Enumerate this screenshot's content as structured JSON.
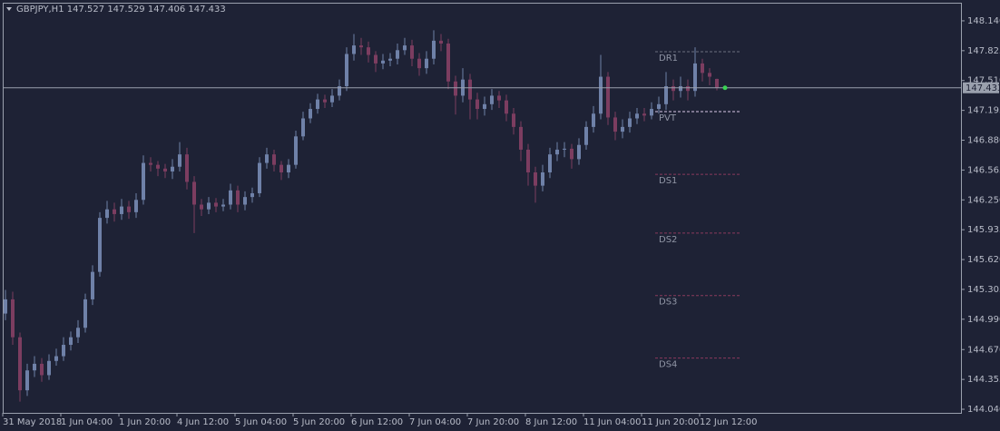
{
  "chart_data": {
    "type": "candlestick",
    "symbol": "GBPJPY,H1",
    "categories": [
      "31 May 2018",
      null,
      null,
      null,
      null,
      null,
      null,
      null,
      "1 Jun 04:00",
      null,
      null,
      null,
      null,
      null,
      null,
      null,
      "1 Jun 20:00",
      null,
      null,
      null,
      null,
      null,
      null,
      null,
      "4 Jun 12:00",
      null,
      null,
      null,
      null,
      null,
      null,
      null,
      "5 Jun 04:00",
      null,
      null,
      null,
      null,
      null,
      null,
      null,
      "5 Jun 20:00",
      null,
      null,
      null,
      null,
      null,
      null,
      null,
      "6 Jun 12:00",
      null,
      null,
      null,
      null,
      null,
      null,
      null,
      "7 Jun 04:00",
      null,
      null,
      null,
      null,
      null,
      null,
      null,
      "7 Jun 20:00",
      null,
      null,
      null,
      null,
      null,
      null,
      null,
      "8 Jun 12:00",
      null,
      null,
      null,
      null,
      null,
      null,
      null,
      "11 Jun 04:00",
      null,
      null,
      null,
      null,
      null,
      null,
      null,
      "11 Jun 20:00",
      null,
      null,
      null,
      null,
      null,
      null,
      null,
      "12 Jun 12:00",
      null,
      null
    ],
    "open": [
      145.05,
      145.2,
      144.8,
      144.24,
      144.45,
      144.52,
      144.4,
      144.55,
      144.6,
      144.72,
      144.8,
      144.9,
      145.2,
      145.49,
      146.06,
      146.15,
      146.1,
      146.18,
      146.12,
      146.25,
      146.64,
      146.62,
      146.58,
      146.55,
      146.6,
      146.73,
      146.44,
      146.2,
      146.15,
      146.22,
      146.18,
      146.2,
      146.35,
      146.2,
      146.28,
      146.32,
      146.64,
      146.73,
      146.62,
      146.54,
      146.62,
      146.92,
      147.11,
      147.21,
      147.31,
      147.28,
      147.35,
      147.45,
      147.79,
      147.88,
      147.86,
      147.78,
      147.69,
      147.72,
      147.74,
      147.83,
      147.88,
      147.74,
      147.64,
      147.74,
      147.93,
      147.9,
      147.5,
      147.35,
      147.52,
      147.31,
      147.21,
      147.26,
      147.35,
      147.3,
      147.16,
      147.02,
      146.78,
      146.54,
      146.4,
      146.54,
      146.73,
      146.78,
      146.79,
      146.68,
      146.83,
      147.02,
      147.16,
      147.55,
      147.12,
      146.97,
      147.02,
      147.11,
      147.16,
      147.14,
      147.21,
      147.26,
      147.45,
      147.4,
      147.45,
      147.4,
      147.69,
      147.59,
      147.527
    ],
    "high": [
      145.3,
      145.28,
      144.85,
      144.52,
      144.6,
      144.58,
      144.62,
      144.68,
      144.8,
      144.86,
      144.98,
      145.26,
      145.56,
      146.12,
      146.24,
      146.22,
      146.26,
      146.24,
      146.32,
      146.72,
      146.7,
      146.66,
      146.63,
      146.68,
      146.86,
      146.8,
      146.5,
      146.26,
      146.28,
      146.27,
      146.26,
      146.42,
      146.4,
      146.34,
      146.38,
      146.7,
      146.8,
      146.78,
      146.66,
      146.68,
      146.98,
      147.18,
      147.27,
      147.37,
      147.36,
      147.42,
      147.52,
      147.86,
      148.0,
      147.96,
      147.92,
      147.82,
      147.79,
      147.8,
      147.9,
      147.96,
      147.94,
      147.8,
      147.82,
      148.04,
      148.0,
      147.95,
      147.56,
      147.64,
      147.58,
      147.38,
      147.34,
      147.42,
      147.4,
      147.36,
      147.22,
      147.08,
      146.84,
      146.6,
      146.62,
      146.8,
      146.86,
      146.86,
      146.84,
      146.9,
      147.08,
      147.24,
      147.78,
      147.6,
      147.18,
      147.1,
      147.18,
      147.22,
      147.22,
      147.28,
      147.34,
      147.6,
      147.52,
      147.55,
      147.52,
      147.86,
      147.74,
      147.64,
      147.529
    ],
    "low": [
      144.98,
      144.72,
      144.12,
      144.18,
      144.38,
      144.33,
      144.35,
      144.5,
      144.55,
      144.66,
      144.74,
      144.85,
      145.14,
      145.44,
      146.0,
      146.02,
      146.04,
      146.05,
      146.06,
      146.2,
      146.55,
      146.5,
      146.48,
      146.47,
      146.55,
      146.36,
      145.9,
      146.08,
      146.1,
      146.12,
      146.13,
      146.15,
      146.12,
      146.14,
      146.22,
      146.28,
      146.58,
      146.55,
      146.46,
      146.48,
      146.58,
      146.88,
      147.06,
      147.16,
      147.22,
      147.23,
      147.3,
      147.4,
      147.72,
      147.78,
      147.7,
      147.6,
      147.63,
      147.66,
      147.68,
      147.78,
      147.66,
      147.56,
      147.58,
      147.68,
      147.82,
      147.42,
      147.15,
      147.28,
      147.1,
      147.1,
      147.14,
      147.2,
      147.22,
      147.08,
      146.94,
      146.66,
      146.4,
      146.22,
      146.34,
      146.48,
      146.66,
      146.7,
      146.58,
      146.62,
      146.78,
      146.96,
      147.1,
      147.04,
      146.88,
      146.9,
      146.96,
      147.05,
      147.08,
      147.1,
      147.16,
      147.2,
      147.3,
      147.33,
      147.3,
      147.34,
      147.5,
      147.46,
      147.406
    ],
    "close": [
      145.2,
      144.8,
      144.24,
      144.45,
      144.52,
      144.4,
      144.55,
      144.6,
      144.72,
      144.8,
      144.9,
      145.2,
      145.49,
      146.06,
      146.15,
      146.1,
      146.18,
      146.12,
      146.25,
      146.64,
      146.62,
      146.58,
      146.55,
      146.6,
      146.73,
      146.44,
      146.2,
      146.15,
      146.22,
      146.18,
      146.2,
      146.35,
      146.2,
      146.28,
      146.32,
      146.64,
      146.73,
      146.62,
      146.54,
      146.62,
      146.92,
      147.11,
      147.21,
      147.31,
      147.28,
      147.35,
      147.45,
      147.79,
      147.88,
      147.86,
      147.78,
      147.69,
      147.72,
      147.74,
      147.83,
      147.88,
      147.74,
      147.64,
      147.74,
      147.93,
      147.9,
      147.5,
      147.35,
      147.52,
      147.31,
      147.21,
      147.26,
      147.35,
      147.3,
      147.16,
      147.02,
      146.78,
      146.54,
      146.4,
      146.54,
      146.73,
      146.78,
      146.79,
      146.68,
      146.83,
      147.02,
      147.16,
      147.55,
      147.12,
      146.97,
      147.02,
      147.11,
      147.16,
      147.14,
      147.21,
      147.26,
      147.45,
      147.4,
      147.45,
      147.4,
      147.69,
      147.59,
      147.55,
      147.433
    ],
    "bull_color": "#6f81a8",
    "bear_color": "#7c3d60",
    "levels": [
      {
        "name": "DR1",
        "value": 147.814,
        "color": "#6b6f80"
      },
      {
        "name": "PVT",
        "value": 147.182,
        "color": "#d8c8e8"
      },
      {
        "name": "DS1",
        "value": 146.52,
        "color": "#8a3a5c"
      },
      {
        "name": "DS2",
        "value": 145.9,
        "color": "#8a3a5c"
      },
      {
        "name": "DS3",
        "value": 145.24,
        "color": "#8a3a5c"
      },
      {
        "name": "DS4",
        "value": 144.58,
        "color": "#8a3a5c"
      }
    ],
    "ylim": [
      144.002,
      148.331
    ],
    "yticks": [
      {
        "value": 148.14,
        "label": "148.140"
      },
      147.825,
      {
        "value": 147.51,
        "label": "147.510"
      },
      147.195,
      {
        "value": 146.88,
        "label": "146.880"
      },
      146.565,
      {
        "value": 146.25,
        "label": "146.250"
      },
      145.935,
      {
        "value": 145.62,
        "label": "145.620"
      },
      145.305,
      {
        "value": 144.99,
        "label": "144.990"
      },
      {
        "value": 144.67,
        "label": "144.670"
      },
      144.355,
      {
        "value": 144.04,
        "label": "144.040"
      }
    ]
  }
}
